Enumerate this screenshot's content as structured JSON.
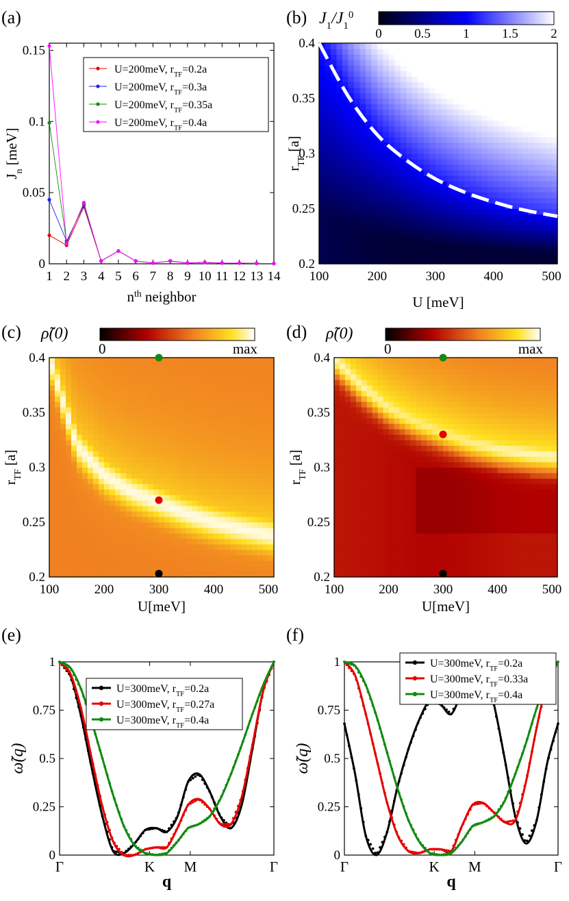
{
  "panel_labels": [
    "(a)",
    "(b)",
    "(c)",
    "(d)",
    "(e)",
    "(f)"
  ],
  "colors": {
    "red": "#e60000",
    "blue": "#2020e8",
    "green": "#128a12",
    "magenta": "#ff00ff",
    "black": "#000000",
    "dashed_line": "#ffffff"
  },
  "chart_data": [
    {
      "id": "a",
      "type": "line",
      "xlabel": "n^th neighbor",
      "ylabel": "J_n [meV]",
      "xlim": [
        1,
        14
      ],
      "ylim": [
        0,
        0.155
      ],
      "xticks": [
        "1",
        "2",
        "3",
        "4",
        "5",
        "6",
        "7",
        "8",
        "9",
        "10",
        "11",
        "12",
        "13",
        "14"
      ],
      "yticks": [
        "0",
        "0.05",
        "0.1",
        "0.15"
      ],
      "legend_position": "top-right",
      "x": [
        1,
        2,
        3,
        4,
        5,
        6,
        7,
        8,
        9,
        10,
        11,
        12,
        13,
        14
      ],
      "series": [
        {
          "name": "U=200meV, r_TF=0.2a",
          "color": "#e60000",
          "values": [
            0.02,
            0.013,
            0.04,
            0.002,
            0.009,
            0.002,
            0.0005,
            0.002,
            0.0005,
            0.001,
            0.0005,
            0.0005,
            0.0003,
            0.0002
          ]
        },
        {
          "name": "U=200meV, r_TF=0.3a",
          "color": "#2020e8",
          "values": [
            0.045,
            0.016,
            0.041,
            0.002,
            0.009,
            0.002,
            0.0005,
            0.002,
            0.0005,
            0.001,
            0.0005,
            0.0005,
            0.0003,
            0.0002
          ]
        },
        {
          "name": "U=200meV, r_TF=0.35a",
          "color": "#128a12",
          "values": [
            0.099,
            0.015,
            0.042,
            0.002,
            0.009,
            0.002,
            0.0005,
            0.002,
            0.0005,
            0.001,
            0.0005,
            0.0005,
            0.0003,
            0.0002
          ]
        },
        {
          "name": "U=200meV, r_TF=0.4a",
          "color": "#ff00ff",
          "values": [
            0.153,
            0.014,
            0.043,
            0.002,
            0.009,
            0.002,
            0.0005,
            0.002,
            0.0005,
            0.001,
            0.0005,
            0.0005,
            0.0003,
            0.0002
          ]
        }
      ]
    },
    {
      "id": "b",
      "type": "heatmap",
      "xlabel": "U [meV]",
      "ylabel": "r_TF [a]",
      "xlim": [
        100,
        510
      ],
      "ylim": [
        0.2,
        0.4
      ],
      "xticks": [
        "100",
        "200",
        "300",
        "400",
        "500"
      ],
      "yticks": [
        "0.2",
        "0.25",
        "0.3",
        "0.35",
        "0.4"
      ],
      "colorbar": {
        "label": "J_1/J_1^0",
        "ticks": [
          "0",
          "0.5",
          "1",
          "1.5",
          "2"
        ],
        "range": [
          0,
          2
        ],
        "colormap": "black-blue-white"
      },
      "dashed_curve": {
        "U": [
          100,
          150,
          200,
          250,
          300,
          350,
          400,
          450,
          510
        ],
        "r_TF": [
          0.4,
          0.352,
          0.317,
          0.294,
          0.277,
          0.265,
          0.256,
          0.249,
          0.243
        ]
      }
    },
    {
      "id": "c",
      "type": "heatmap",
      "xlabel": "U[meV]",
      "ylabel": "r_TF [a]",
      "xlim": [
        100,
        510
      ],
      "ylim": [
        0.2,
        0.4
      ],
      "xticks": [
        "100",
        "200",
        "300",
        "400",
        "500"
      ],
      "yticks": [
        "0.2",
        "0.25",
        "0.3",
        "0.35",
        "0.4"
      ],
      "colorbar": {
        "label": "ρ̃(0)",
        "min_label": "0",
        "max_label": "max",
        "colormap": "black-red-yellow-white"
      },
      "ridge": {
        "U": [
          100,
          150,
          200,
          250,
          300,
          350,
          400,
          450,
          510
        ],
        "r_TF": [
          0.4,
          0.32,
          0.293,
          0.278,
          0.268,
          0.258,
          0.25,
          0.244,
          0.238
        ]
      },
      "markers": [
        {
          "U": 300,
          "r_TF": 0.4,
          "color": "#128a12"
        },
        {
          "U": 300,
          "r_TF": 0.27,
          "color": "#e60000"
        },
        {
          "U": 300,
          "r_TF": 0.203,
          "color": "#000000"
        }
      ]
    },
    {
      "id": "d",
      "type": "heatmap",
      "xlabel": "U[meV]",
      "ylabel": "r_TF [a]",
      "xlim": [
        100,
        510
      ],
      "ylim": [
        0.2,
        0.4
      ],
      "xticks": [
        "100",
        "200",
        "300",
        "400",
        "500"
      ],
      "yticks": [
        "0.2",
        "0.25",
        "0.3",
        "0.35",
        "0.4"
      ],
      "colorbar": {
        "label": "ρ̃(0)",
        "min_label": "0",
        "max_label": "max",
        "colormap": "black-red-yellow-white"
      },
      "ridge": {
        "U": [
          100,
          150,
          200,
          250,
          300,
          350,
          400,
          450,
          510
        ],
        "r_TF": [
          0.4,
          0.375,
          0.355,
          0.342,
          0.332,
          0.323,
          0.317,
          0.313,
          0.31
        ]
      },
      "markers": [
        {
          "U": 300,
          "r_TF": 0.4,
          "color": "#128a12"
        },
        {
          "U": 300,
          "r_TF": 0.33,
          "color": "#e60000"
        },
        {
          "U": 300,
          "r_TF": 0.203,
          "color": "#000000"
        }
      ]
    },
    {
      "id": "e",
      "type": "line",
      "xlabel": "q",
      "ylabel": "ω̃(q)",
      "xlim": [
        0,
        1
      ],
      "ylim": [
        0,
        1
      ],
      "xticks": [
        "Γ",
        "K",
        "M",
        "Γ"
      ],
      "xtick_positions": [
        0,
        0.42,
        0.61,
        1
      ],
      "yticks": [
        "0",
        "0.25",
        "0.5",
        "0.75",
        "1"
      ],
      "legend_position": "top-center",
      "series": [
        {
          "name": "U=300meV, r_TF=0.2a",
          "color": "#000000",
          "x": [
            0,
            0.05,
            0.1,
            0.15,
            0.2,
            0.25,
            0.3,
            0.35,
            0.4,
            0.45,
            0.5,
            0.55,
            0.6,
            0.65,
            0.7,
            0.75,
            0.8,
            0.85,
            0.9,
            0.95,
            1
          ],
          "values": [
            1,
            0.93,
            0.72,
            0.45,
            0.2,
            0.02,
            0.01,
            0.06,
            0.13,
            0.14,
            0.12,
            0.2,
            0.38,
            0.42,
            0.33,
            0.2,
            0.14,
            0.26,
            0.55,
            0.85,
            1
          ]
        },
        {
          "name": "U=300meV, r_TF=0.27a",
          "color": "#e60000",
          "x": [
            0,
            0.05,
            0.1,
            0.15,
            0.2,
            0.25,
            0.3,
            0.35,
            0.4,
            0.45,
            0.5,
            0.55,
            0.6,
            0.65,
            0.7,
            0.75,
            0.8,
            0.85,
            0.9,
            0.95,
            1
          ],
          "values": [
            1,
            0.94,
            0.76,
            0.5,
            0.25,
            0.07,
            0.0,
            0.0,
            0.03,
            0.04,
            0.04,
            0.14,
            0.26,
            0.29,
            0.24,
            0.16,
            0.16,
            0.3,
            0.57,
            0.85,
            1
          ]
        },
        {
          "name": "U=300meV, r_TF=0.4a",
          "color": "#128a12",
          "x": [
            0,
            0.05,
            0.1,
            0.15,
            0.2,
            0.25,
            0.3,
            0.35,
            0.4,
            0.45,
            0.5,
            0.55,
            0.6,
            0.65,
            0.7,
            0.75,
            0.8,
            0.85,
            0.9,
            0.95,
            1
          ],
          "values": [
            1,
            0.97,
            0.86,
            0.69,
            0.5,
            0.31,
            0.15,
            0.05,
            0.01,
            0.0,
            0.01,
            0.07,
            0.14,
            0.16,
            0.2,
            0.29,
            0.42,
            0.57,
            0.73,
            0.88,
            1
          ]
        }
      ]
    },
    {
      "id": "f",
      "type": "line",
      "xlabel": "q",
      "ylabel": "ω̃(q)",
      "xlim": [
        0,
        1
      ],
      "ylim": [
        0,
        1
      ],
      "xticks": [
        "Γ",
        "K",
        "M",
        "Γ"
      ],
      "xtick_positions": [
        0,
        0.42,
        0.61,
        1
      ],
      "yticks": [
        "0",
        "0.25",
        "0.5",
        "0.75",
        "1"
      ],
      "legend_position": "top-right",
      "series": [
        {
          "name": "U=300meV, r_TF=0.2a",
          "color": "#000000",
          "x": [
            0,
            0.05,
            0.1,
            0.15,
            0.2,
            0.25,
            0.3,
            0.35,
            0.4,
            0.45,
            0.5,
            0.55,
            0.6,
            0.65,
            0.7,
            0.75,
            0.8,
            0.85,
            0.9,
            0.95,
            1
          ],
          "values": [
            0.68,
            0.42,
            0.1,
            0.0,
            0.12,
            0.36,
            0.55,
            0.7,
            0.8,
            0.78,
            0.73,
            0.85,
            0.98,
            0.97,
            0.78,
            0.5,
            0.2,
            0.06,
            0.18,
            0.48,
            0.68
          ]
        },
        {
          "name": "U=300meV, r_TF=0.33a",
          "color": "#e60000",
          "x": [
            0,
            0.05,
            0.1,
            0.15,
            0.2,
            0.25,
            0.3,
            0.35,
            0.4,
            0.45,
            0.5,
            0.55,
            0.6,
            0.65,
            0.7,
            0.75,
            0.8,
            0.85,
            0.9,
            0.95,
            1
          ],
          "values": [
            1,
            0.93,
            0.73,
            0.5,
            0.27,
            0.1,
            0.02,
            0.01,
            0.03,
            0.03,
            0.02,
            0.15,
            0.26,
            0.27,
            0.22,
            0.17,
            0.18,
            0.38,
            0.66,
            0.9,
            1
          ]
        },
        {
          "name": "U=300meV, r_TF=0.4a",
          "color": "#128a12",
          "x": [
            0,
            0.05,
            0.1,
            0.15,
            0.2,
            0.25,
            0.3,
            0.35,
            0.4,
            0.45,
            0.5,
            0.55,
            0.6,
            0.65,
            0.7,
            0.75,
            0.8,
            0.85,
            0.9,
            0.95,
            1
          ],
          "values": [
            1,
            0.98,
            0.88,
            0.72,
            0.53,
            0.34,
            0.18,
            0.07,
            0.01,
            0.0,
            0.01,
            0.07,
            0.15,
            0.17,
            0.2,
            0.28,
            0.42,
            0.58,
            0.76,
            0.9,
            1
          ]
        }
      ]
    }
  ]
}
